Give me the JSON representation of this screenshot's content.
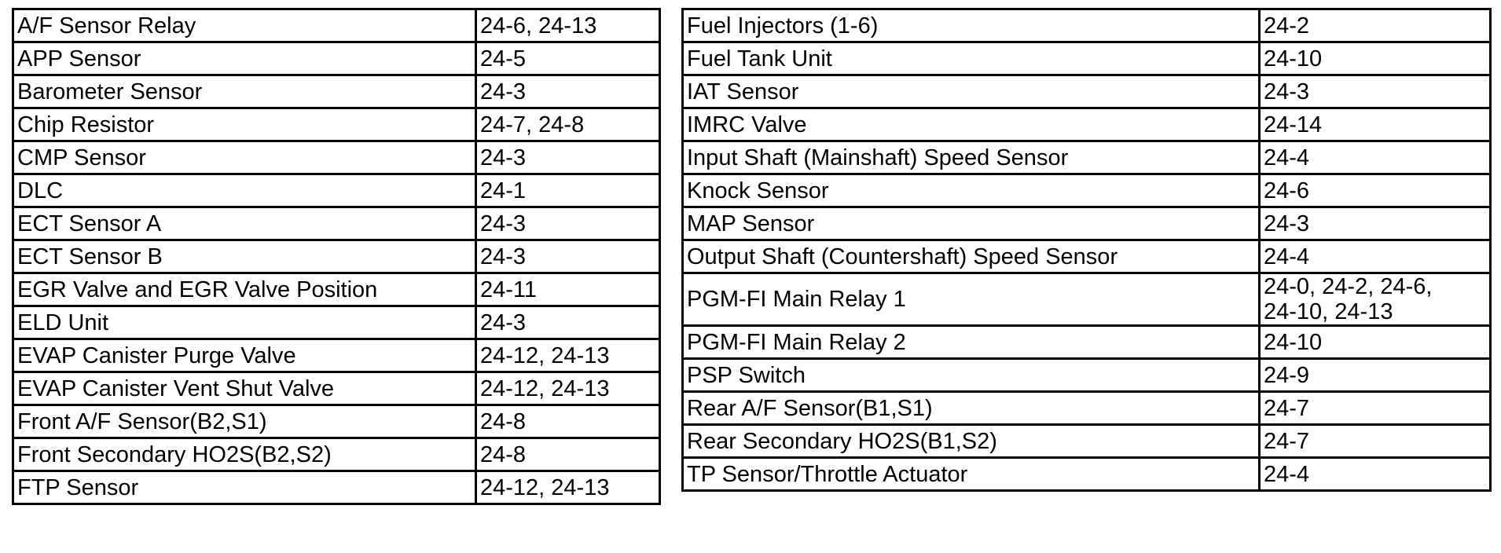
{
  "left_table": [
    {
      "component": "A/F Sensor Relay",
      "pages": "24-6, 24-13"
    },
    {
      "component": "APP Sensor",
      "pages": "24-5"
    },
    {
      "component": "Barometer Sensor",
      "pages": "24-3"
    },
    {
      "component": "Chip Resistor",
      "pages": "24-7, 24-8"
    },
    {
      "component": "CMP Sensor",
      "pages": "24-3"
    },
    {
      "component": "DLC",
      "pages": "24-1"
    },
    {
      "component": "ECT Sensor A",
      "pages": "24-3"
    },
    {
      "component": "ECT Sensor B",
      "pages": "24-3"
    },
    {
      "component": "EGR Valve and EGR Valve Position",
      "pages": "24-11"
    },
    {
      "component": "ELD Unit",
      "pages": "24-3"
    },
    {
      "component": "EVAP Canister Purge Valve",
      "pages": "24-12, 24-13"
    },
    {
      "component": "EVAP Canister Vent Shut Valve",
      "pages": "24-12, 24-13"
    },
    {
      "component": "Front A/F Sensor(B2,S1)",
      "pages": "24-8"
    },
    {
      "component": "Front Secondary HO2S(B2,S2)",
      "pages": "24-8"
    },
    {
      "component": "FTP Sensor",
      "pages": "24-12, 24-13"
    }
  ],
  "right_table": [
    {
      "component": "Fuel Injectors (1-6)",
      "pages": "24-2"
    },
    {
      "component": "Fuel Tank Unit",
      "pages": "24-10"
    },
    {
      "component": "IAT Sensor",
      "pages": "24-3"
    },
    {
      "component": "IMRC Valve",
      "pages": "24-14"
    },
    {
      "component": "Input Shaft (Mainshaft) Speed Sensor",
      "pages": "24-4"
    },
    {
      "component": "Knock Sensor",
      "pages": "24-6"
    },
    {
      "component": "MAP Sensor",
      "pages": "24-3"
    },
    {
      "component": "Output Shaft (Countershaft) Speed Sensor",
      "pages": "24-4"
    },
    {
      "component": "PGM-FI Main Relay 1",
      "pages": "24-0, 24-2, 24-6, 24-10, 24-13",
      "pages_line1": "24-0, 24-2, 24-6,",
      "pages_line2": "24-10, 24-13"
    },
    {
      "component": "PGM-FI Main Relay 2",
      "pages": "24-10"
    },
    {
      "component": "PSP Switch",
      "pages": "24-9"
    },
    {
      "component": "Rear A/F Sensor(B1,S1)",
      "pages": "24-7"
    },
    {
      "component": "Rear Secondary HO2S(B1,S2)",
      "pages": "24-7"
    },
    {
      "component": "TP Sensor/Throttle Actuator",
      "pages": "24-4"
    }
  ]
}
